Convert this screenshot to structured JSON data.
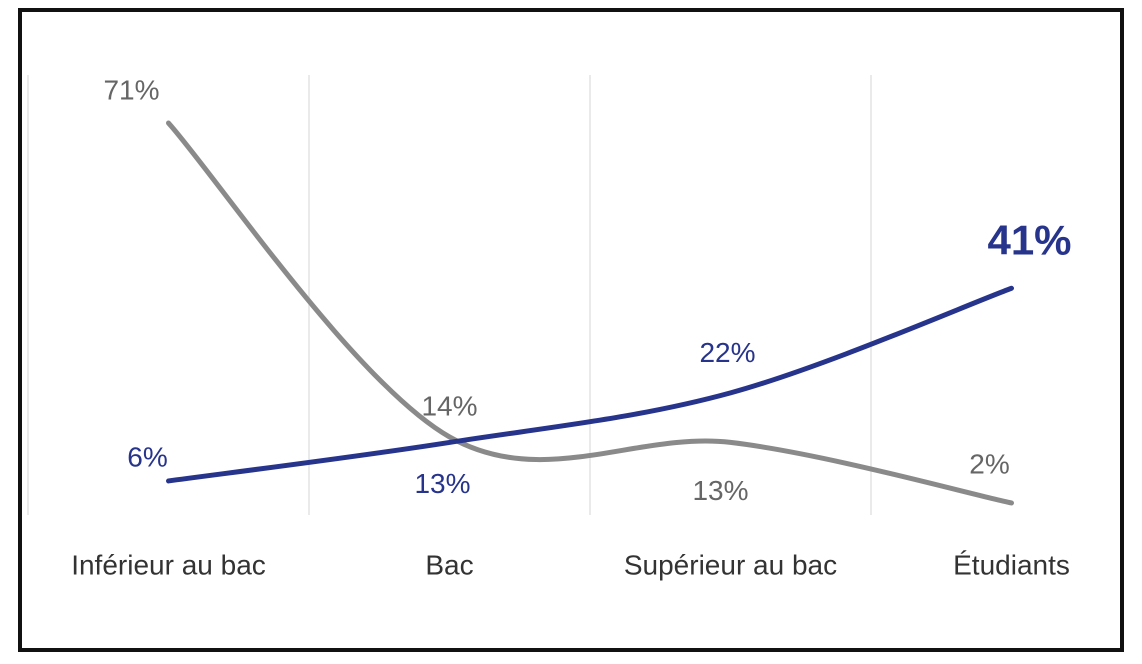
{
  "chart_data": {
    "type": "line",
    "categories": [
      "Inférieur au bac",
      "Bac",
      "Supérieur au bac",
      "Étudiants"
    ],
    "series": [
      {
        "color": "#8a8a8a",
        "values": [
          71,
          14,
          13,
          2
        ],
        "value_labels": [
          "71%",
          "14%",
          "13%",
          "2%"
        ]
      },
      {
        "color": "#27348b",
        "values": [
          6,
          13,
          22,
          41
        ],
        "value_labels": [
          "6%",
          "13%",
          "22%",
          "41%"
        ]
      }
    ],
    "ylim": [
      0,
      75
    ],
    "grid": true
  }
}
